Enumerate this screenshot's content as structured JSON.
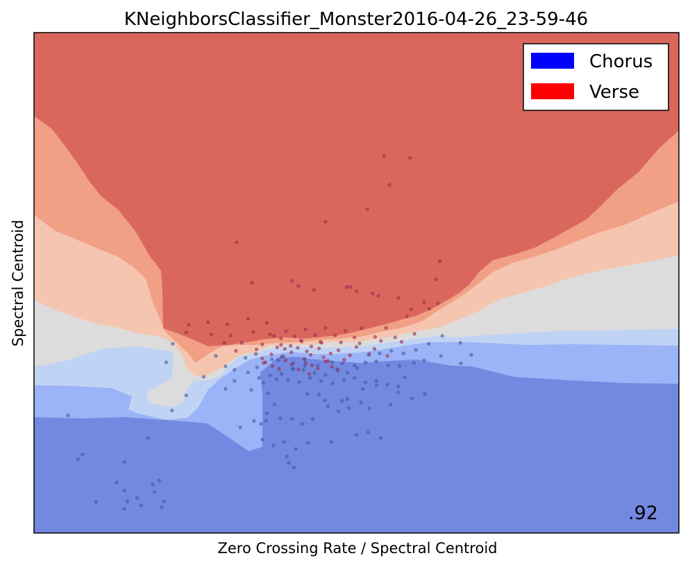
{
  "chart_data": {
    "type": "scatter",
    "title": "KNeighborsClassifier_Monster2016-04-26_23-59-46",
    "xlabel": "Zero Crossing Rate / Spectral Centroid",
    "ylabel": "Spectral Centroid",
    "score": ".92",
    "ticks_shown": false,
    "grid": false,
    "legend_position": "top-right",
    "legend": [
      {
        "label": "Chorus",
        "color": "#0000ff"
      },
      {
        "label": "Verse",
        "color": "#ff0000"
      }
    ],
    "decision_levels": [
      {
        "level": 0.0,
        "color": "#7388e0"
      },
      {
        "level": 0.2,
        "color": "#9bb3f7"
      },
      {
        "level": 0.4,
        "color": "#c1d3f4"
      },
      {
        "level": 0.5,
        "color": "#dddcdc"
      },
      {
        "level": 0.6,
        "color": "#f5c5b0"
      },
      {
        "level": 0.8,
        "color": "#f2a085"
      },
      {
        "level": 1.0,
        "color": "#da675e"
      }
    ],
    "series": [
      {
        "name": "Verse",
        "color": "#9a2c4c",
        "x": [
          0.543,
          0.583,
          0.551,
          0.517,
          0.452,
          0.629,
          0.314,
          0.623,
          0.613,
          0.338,
          0.4,
          0.41,
          0.434,
          0.485,
          0.491,
          0.525,
          0.5,
          0.534,
          0.565,
          0.585,
          0.605,
          0.626,
          0.578,
          0.546,
          0.508,
          0.483,
          0.452,
          0.421,
          0.391,
          0.361,
          0.332,
          0.3,
          0.27,
          0.24,
          0.236,
          0.275,
          0.305,
          0.34,
          0.372,
          0.404,
          0.436,
          0.467,
          0.497,
          0.529,
          0.56,
          0.59,
          0.57,
          0.538,
          0.505,
          0.476,
          0.446,
          0.415,
          0.383,
          0.354,
          0.322,
          0.295,
          0.313,
          0.345,
          0.377,
          0.409,
          0.442,
          0.472,
          0.5,
          0.528,
          0.548,
          0.52,
          0.49,
          0.46,
          0.429,
          0.399,
          0.368,
          0.344,
          0.359,
          0.39,
          0.421,
          0.452,
          0.481,
          0.471,
          0.44,
          0.41,
          0.38,
          0.354,
          0.384,
          0.419,
          0.449,
          0.462,
          0.431,
          0.4,
          0.37,
          0.356,
          0.389,
          0.423,
          0.444,
          0.414,
          0.383,
          0.366,
          0.398,
          0.43,
          0.456,
          0.427
        ],
        "y": [
          0.753,
          0.75,
          0.696,
          0.647,
          0.622,
          0.543,
          0.581,
          0.507,
          0.448,
          0.5,
          0.504,
          0.494,
          0.486,
          0.491,
          0.492,
          0.479,
          0.483,
          0.474,
          0.47,
          0.447,
          0.461,
          0.459,
          0.433,
          0.41,
          0.409,
          0.404,
          0.41,
          0.407,
          0.403,
          0.42,
          0.428,
          0.417,
          0.421,
          0.416,
          0.401,
          0.397,
          0.395,
          0.402,
          0.394,
          0.393,
          0.396,
          0.395,
          0.391,
          0.392,
          0.391,
          0.398,
          0.382,
          0.384,
          0.379,
          0.381,
          0.38,
          0.383,
          0.376,
          0.377,
          0.38,
          0.38,
          0.364,
          0.367,
          0.371,
          0.37,
          0.369,
          0.365,
          0.372,
          0.368,
          0.354,
          0.358,
          0.355,
          0.359,
          0.356,
          0.361,
          0.357,
          0.358,
          0.341,
          0.345,
          0.34,
          0.343,
          0.346,
          0.325,
          0.329,
          0.327,
          0.328,
          0.349,
          0.352,
          0.348,
          0.351,
          0.332,
          0.335,
          0.337,
          0.334,
          0.34,
          0.368,
          0.363,
          0.382,
          0.385,
          0.389,
          0.397,
          0.374,
          0.373,
          0.344,
          0.318
        ]
      },
      {
        "name": "Chorus",
        "color": "#41589c",
        "x": [
          0.053,
          0.068,
          0.14,
          0.096,
          0.16,
          0.14,
          0.166,
          0.145,
          0.194,
          0.214,
          0.236,
          0.205,
          0.215,
          0.177,
          0.075,
          0.14,
          0.128,
          0.198,
          0.184,
          0.187,
          0.202,
          0.263,
          0.297,
          0.282,
          0.311,
          0.328,
          0.346,
          0.369,
          0.387,
          0.402,
          0.42,
          0.44,
          0.462,
          0.478,
          0.497,
          0.514,
          0.531,
          0.549,
          0.567,
          0.589,
          0.605,
          0.631,
          0.662,
          0.678,
          0.661,
          0.633,
          0.612,
          0.592,
          0.573,
          0.554,
          0.536,
          0.519,
          0.501,
          0.486,
          0.47,
          0.452,
          0.435,
          0.418,
          0.401,
          0.384,
          0.366,
          0.349,
          0.332,
          0.311,
          0.297,
          0.337,
          0.356,
          0.376,
          0.394,
          0.411,
          0.428,
          0.445,
          0.463,
          0.481,
          0.497,
          0.514,
          0.531,
          0.548,
          0.565,
          0.442,
          0.424,
          0.478,
          0.451,
          0.486,
          0.507,
          0.52,
          0.488,
          0.472,
          0.456,
          0.432,
          0.416,
          0.4,
          0.382,
          0.36,
          0.341,
          0.32,
          0.354,
          0.371,
          0.388,
          0.406,
          0.425,
          0.461,
          0.5,
          0.518,
          0.538,
          0.553,
          0.586,
          0.606,
          0.565,
          0.575,
          0.531,
          0.51,
          0.42,
          0.379,
          0.402,
          0.363,
          0.373,
          0.361,
          0.352,
          0.392,
          0.403,
          0.395
        ],
        "y": [
          0.235,
          0.147,
          0.085,
          0.062,
          0.07,
          0.048,
          0.055,
          0.063,
          0.105,
          0.245,
          0.275,
          0.341,
          0.378,
          0.19,
          0.157,
          0.142,
          0.101,
          0.052,
          0.097,
          0.082,
          0.063,
          0.312,
          0.333,
          0.354,
          0.326,
          0.35,
          0.331,
          0.347,
          0.353,
          0.34,
          0.347,
          0.335,
          0.341,
          0.339,
          0.335,
          0.341,
          0.343,
          0.335,
          0.334,
          0.34,
          0.345,
          0.354,
          0.339,
          0.356,
          0.38,
          0.394,
          0.378,
          0.366,
          0.359,
          0.364,
          0.359,
          0.356,
          0.33,
          0.32,
          0.327,
          0.316,
          0.32,
          0.326,
          0.329,
          0.318,
          0.315,
          0.31,
          0.321,
          0.304,
          0.288,
          0.286,
          0.3,
          0.307,
          0.306,
          0.302,
          0.31,
          0.304,
          0.299,
          0.305,
          0.31,
          0.301,
          0.304,
          0.297,
          0.293,
          0.277,
          0.278,
          0.264,
          0.265,
          0.268,
          0.261,
          0.249,
          0.25,
          0.243,
          0.253,
          0.228,
          0.218,
          0.228,
          0.229,
          0.224,
          0.224,
          0.211,
          0.187,
          0.175,
          0.182,
          0.168,
          0.18,
          0.182,
          0.196,
          0.201,
          0.19,
          0.257,
          0.269,
          0.278,
          0.281,
          0.311,
          0.295,
          0.288,
          0.334,
          0.345,
          0.327,
          0.279,
          0.257,
          0.239,
          0.218,
          0.153,
          0.131,
          0.14
        ]
      }
    ]
  }
}
